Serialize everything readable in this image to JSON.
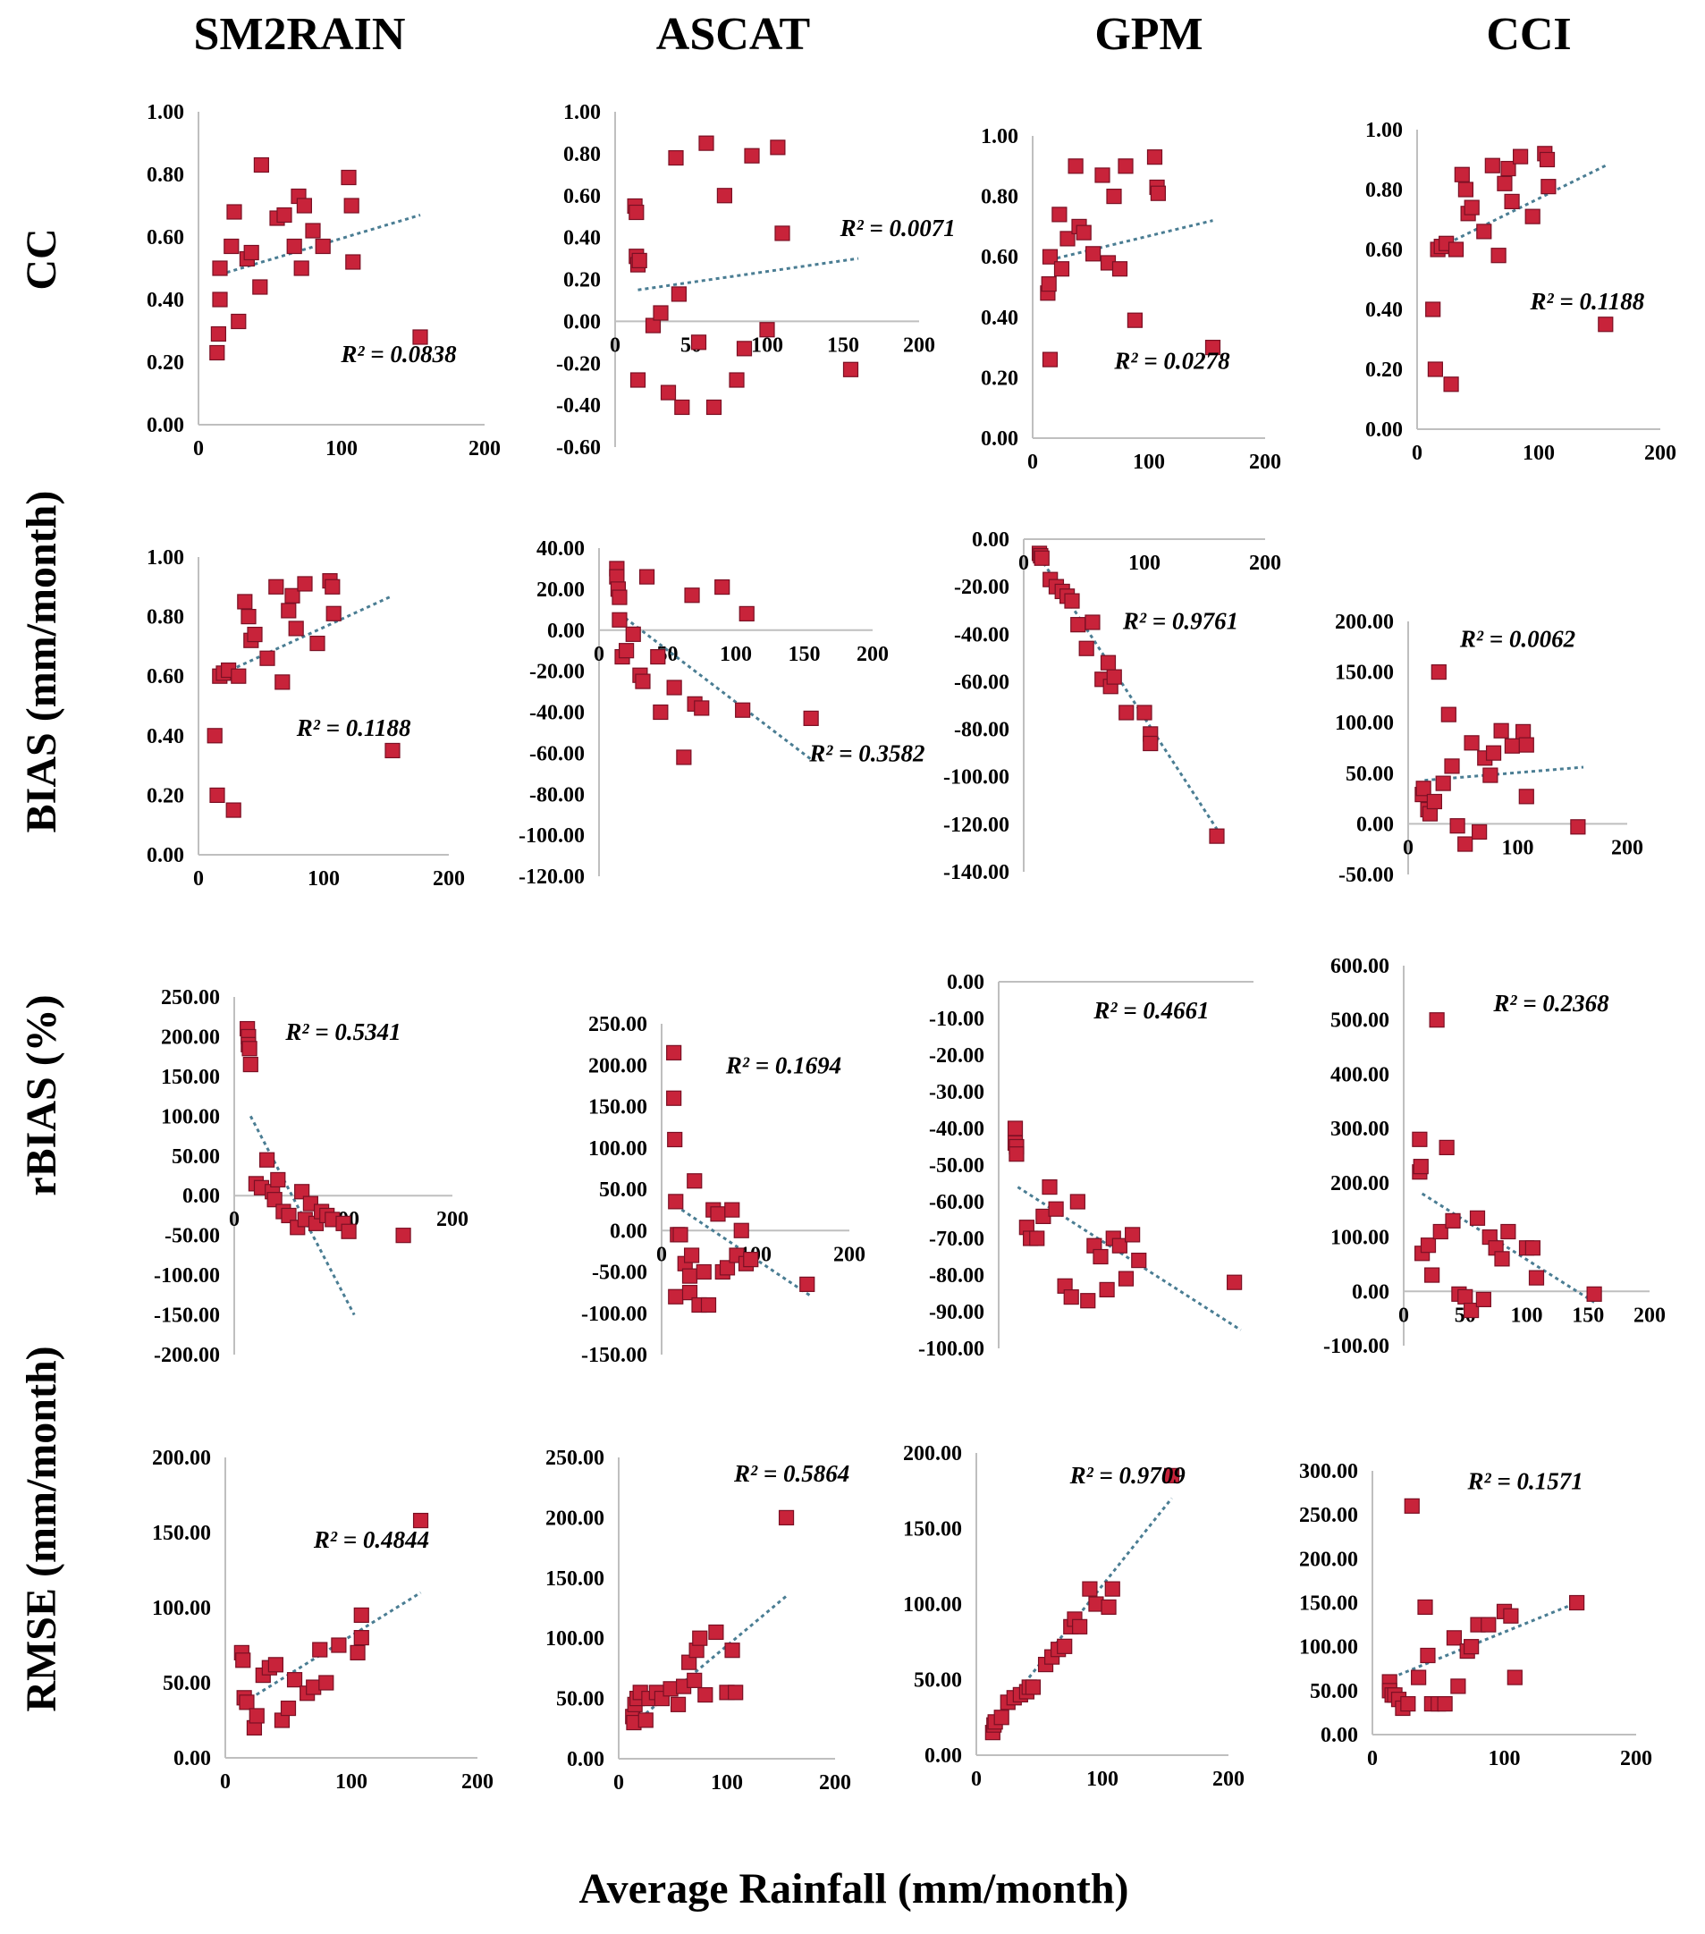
{
  "figure": {
    "column_titles": [
      "SM2RAIN",
      "ASCAT",
      "GPM",
      "CCI"
    ],
    "row_titles": [
      "CC",
      "BIAS (mm/month)",
      "rBIAS (%)",
      "RMSE (mm/month)"
    ],
    "x_axis_title": "Average Rainfall (mm/month)"
  },
  "colors": {
    "marker": "#c8233a",
    "marker_edge": "#7a1024",
    "trendline": "#4a7d93",
    "axis": "#bfbfbf"
  },
  "chart_data": [
    {
      "id": "cc-sm2rain",
      "type": "scatter",
      "metric": "CC",
      "product": "SM2RAIN",
      "xlim": [
        0,
        200
      ],
      "ylim": [
        0,
        1
      ],
      "xticks": [
        "0",
        "100",
        "200"
      ],
      "yticks": [
        "0.00",
        "0.20",
        "0.40",
        "0.60",
        "0.80",
        "1.00"
      ],
      "r2": "R² = 0.0838",
      "trend": [
        [
          15,
          0.48
        ],
        [
          155,
          0.67
        ]
      ],
      "x": [
        13,
        14,
        15,
        15,
        23,
        25,
        28,
        34,
        37,
        43,
        44,
        55,
        60,
        67,
        70,
        72,
        74,
        80,
        87,
        105,
        107,
        108,
        155
      ],
      "y": [
        0.23,
        0.29,
        0.4,
        0.5,
        0.57,
        0.68,
        0.33,
        0.53,
        0.55,
        0.44,
        0.83,
        0.66,
        0.67,
        0.57,
        0.73,
        0.5,
        0.7,
        0.62,
        0.57,
        0.79,
        0.7,
        0.52,
        0.28
      ]
    },
    {
      "id": "cc-ascat",
      "type": "scatter",
      "metric": "CC",
      "product": "ASCAT",
      "xlim": [
        0,
        200
      ],
      "ylim": [
        -0.6,
        1
      ],
      "xticks": [
        "0",
        "50",
        "100",
        "150",
        "200"
      ],
      "yticks": [
        "-0.60",
        "-0.40",
        "-0.20",
        "0.00",
        "0.20",
        "0.40",
        "0.60",
        "0.80",
        "1.00"
      ],
      "r2": "R² = 0.0071",
      "trend": [
        [
          15,
          0.15
        ],
        [
          160,
          0.3
        ]
      ],
      "x": [
        13,
        14,
        14,
        15,
        15,
        16,
        25,
        30,
        35,
        40,
        42,
        44,
        55,
        60,
        65,
        72,
        80,
        85,
        90,
        100,
        107,
        110,
        155
      ],
      "y": [
        0.55,
        0.52,
        0.31,
        0.27,
        -0.28,
        0.29,
        -0.02,
        0.04,
        -0.34,
        0.78,
        0.13,
        -0.41,
        -0.1,
        0.85,
        -0.41,
        0.6,
        -0.28,
        -0.13,
        0.79,
        -0.04,
        0.83,
        0.42,
        -0.23
      ]
    },
    {
      "id": "cc-gpm",
      "type": "scatter",
      "metric": "CC",
      "product": "GPM",
      "xlim": [
        0,
        200
      ],
      "ylim": [
        0,
        1
      ],
      "xticks": [
        "0",
        "100",
        "200"
      ],
      "yticks": [
        "0.00",
        "0.20",
        "0.40",
        "0.60",
        "0.80",
        "1.00"
      ],
      "r2": "R² = 0.0278",
      "trend": [
        [
          15,
          0.59
        ],
        [
          155,
          0.72
        ]
      ],
      "x": [
        13,
        14,
        15,
        15,
        23,
        25,
        30,
        37,
        40,
        44,
        52,
        60,
        65,
        70,
        75,
        80,
        88,
        105,
        107,
        108,
        155
      ],
      "y": [
        0.48,
        0.51,
        0.6,
        0.26,
        0.74,
        0.56,
        0.66,
        0.9,
        0.7,
        0.68,
        0.61,
        0.87,
        0.58,
        0.8,
        0.56,
        0.9,
        0.39,
        0.93,
        0.83,
        0.81,
        0.3
      ]
    },
    {
      "id": "cc-cci",
      "type": "scatter",
      "metric": "CC",
      "product": "CCI",
      "xlim": [
        0,
        200
      ],
      "ylim": [
        0,
        1
      ],
      "xticks": [
        "0",
        "100",
        "200"
      ],
      "yticks": [
        "0.00",
        "0.20",
        "0.40",
        "0.60",
        "0.80",
        "1.00"
      ],
      "r2": "R² = 0.1188",
      "trend": [
        [
          15,
          0.6
        ],
        [
          155,
          0.88
        ]
      ],
      "x": [
        13,
        15,
        17,
        20,
        24,
        28,
        32,
        37,
        40,
        42,
        45,
        55,
        62,
        67,
        72,
        75,
        78,
        85,
        95,
        105,
        107,
        108,
        155
      ],
      "y": [
        0.4,
        0.2,
        0.6,
        0.61,
        0.62,
        0.15,
        0.6,
        0.85,
        0.8,
        0.72,
        0.74,
        0.66,
        0.88,
        0.58,
        0.82,
        0.87,
        0.76,
        0.91,
        0.71,
        0.92,
        0.9,
        0.81,
        0.35
      ]
    },
    {
      "id": "bias-sm2rain",
      "type": "scatter",
      "metric": "BIAS",
      "product": "SM2RAIN",
      "xlim": [
        0,
        200
      ],
      "ylim": [
        0,
        1
      ],
      "xticks": [
        "0",
        "100",
        "200"
      ],
      "yticks": [
        "0.00",
        "0.20",
        "0.40",
        "0.60",
        "0.80",
        "1.00"
      ],
      "r2": "R² = 0.1188",
      "trend": [
        [
          15,
          0.6
        ],
        [
          155,
          0.87
        ]
      ],
      "x": [
        13,
        15,
        17,
        20,
        24,
        28,
        32,
        37,
        40,
        42,
        45,
        55,
        62,
        67,
        72,
        75,
        78,
        85,
        95,
        105,
        107,
        108,
        155
      ],
      "y": [
        0.4,
        0.2,
        0.6,
        0.61,
        0.62,
        0.15,
        0.6,
        0.85,
        0.8,
        0.72,
        0.74,
        0.66,
        0.9,
        0.58,
        0.82,
        0.87,
        0.76,
        0.91,
        0.71,
        0.92,
        0.9,
        0.81,
        0.35
      ]
    },
    {
      "id": "bias-ascat",
      "type": "scatter",
      "metric": "BIAS",
      "product": "ASCAT",
      "xlim": [
        0,
        200
      ],
      "ylim": [
        -120,
        40
      ],
      "xticks": [
        "0",
        "50",
        "100",
        "150",
        "200"
      ],
      "yticks": [
        "-120.00",
        "-100.00",
        "-80.00",
        "-60.00",
        "-40.00",
        "-20.00",
        "0.00",
        "20.00",
        "40.00"
      ],
      "r2": "R² = 0.3582",
      "trend": [
        [
          15,
          8
        ],
        [
          155,
          -63
        ]
      ],
      "x": [
        13,
        13,
        14,
        15,
        15,
        17,
        20,
        25,
        30,
        32,
        35,
        43,
        45,
        55,
        62,
        68,
        70,
        75,
        90,
        105,
        108,
        155
      ],
      "y": [
        30,
        26,
        20,
        16,
        5,
        -13,
        -10,
        -2,
        -22,
        -25,
        26,
        -13,
        -40,
        -28,
        -62,
        17,
        -36,
        -38,
        21,
        -39,
        8,
        -43
      ]
    },
    {
      "id": "bias-gpm",
      "type": "scatter",
      "metric": "BIAS",
      "product": "GPM",
      "xlim": [
        0,
        200
      ],
      "ylim": [
        -140,
        0
      ],
      "xticks": [
        "0",
        "100",
        "200"
      ],
      "yticks": [
        "-140.00",
        "-120.00",
        "-100.00",
        "-80.00",
        "-60.00",
        "-40.00",
        "-20.00",
        "0.00"
      ],
      "r2": "R² = 0.9761",
      "trend": [
        [
          10,
          -5
        ],
        [
          160,
          -122
        ]
      ],
      "x": [
        13,
        14,
        15,
        22,
        27,
        32,
        36,
        40,
        45,
        52,
        57,
        65,
        70,
        72,
        75,
        85,
        100,
        105,
        105,
        160
      ],
      "y": [
        -6,
        -7,
        -8,
        -17,
        -20,
        -22,
        -24,
        -26,
        -36,
        -46,
        -35,
        -59,
        -52,
        -62,
        -58,
        -73,
        -73,
        -82,
        -86,
        -125
      ]
    },
    {
      "id": "bias-cci",
      "type": "scatter",
      "metric": "BIAS",
      "product": "CCI",
      "xlim": [
        0,
        200
      ],
      "ylim": [
        -50,
        200
      ],
      "xticks": [
        "0",
        "100",
        "200"
      ],
      "yticks": [
        "-50.00",
        "0.00",
        "50.00",
        "100.00",
        "150.00",
        "200.00"
      ],
      "r2": "R² = 0.0062",
      "trend": [
        [
          15,
          43
        ],
        [
          160,
          56
        ]
      ],
      "x": [
        13,
        14,
        18,
        20,
        24,
        28,
        32,
        37,
        40,
        45,
        52,
        58,
        65,
        70,
        75,
        78,
        85,
        95,
        105,
        108,
        108,
        155
      ],
      "y": [
        29,
        35,
        14,
        10,
        22,
        150,
        40,
        108,
        57,
        -2,
        -20,
        80,
        -8,
        65,
        48,
        70,
        92,
        77,
        91,
        27,
        78,
        -3
      ]
    },
    {
      "id": "rbias-sm2rain",
      "type": "scatter",
      "metric": "rBIAS",
      "product": "SM2RAIN",
      "xlim": [
        0,
        200
      ],
      "ylim": [
        -200,
        250
      ],
      "xticks": [
        "0",
        "100",
        "200"
      ],
      "yticks": [
        "-200.00",
        "-150.00",
        "-100.00",
        "-50.00",
        "0.00",
        "50.00",
        "100.00",
        "150.00",
        "200.00",
        "250.00"
      ],
      "r2": "R² = 0.5341",
      "trend": [
        [
          15,
          100
        ],
        [
          110,
          -150
        ]
      ],
      "x": [
        12,
        13,
        13,
        14,
        15,
        20,
        25,
        30,
        35,
        37,
        40,
        45,
        50,
        58,
        62,
        65,
        70,
        75,
        80,
        85,
        90,
        100,
        105,
        155
      ],
      "y": [
        210,
        200,
        190,
        185,
        165,
        15,
        10,
        45,
        5,
        -5,
        20,
        -20,
        -25,
        -40,
        5,
        -30,
        -10,
        -35,
        -20,
        -25,
        -30,
        -35,
        -45,
        -50
      ]
    },
    {
      "id": "rbias-ascat",
      "type": "scatter",
      "metric": "rBIAS",
      "product": "ASCAT",
      "xlim": [
        0,
        200
      ],
      "ylim": [
        -150,
        250
      ],
      "xticks": [
        "0",
        "100",
        "200"
      ],
      "yticks": [
        "-150.00",
        "-100.00",
        "-50.00",
        "0.00",
        "50.00",
        "100.00",
        "150.00",
        "200.00",
        "250.00"
      ],
      "r2": "R² = 0.1694",
      "trend": [
        [
          15,
          30
        ],
        [
          160,
          -80
        ]
      ],
      "x": [
        13,
        13,
        14,
        15,
        15,
        17,
        20,
        25,
        30,
        30,
        32,
        35,
        40,
        45,
        50,
        55,
        60,
        65,
        70,
        75,
        80,
        85,
        90,
        95,
        155
      ],
      "y": [
        215,
        160,
        110,
        35,
        -80,
        -5,
        -5,
        -40,
        -55,
        -75,
        -30,
        60,
        -90,
        -50,
        -90,
        25,
        20,
        -50,
        -45,
        25,
        -30,
        0,
        -40,
        -35,
        -65
      ]
    },
    {
      "id": "rbias-gpm",
      "type": "scatter",
      "metric": "rBIAS",
      "product": "GPM",
      "xlim": [
        0,
        200
      ],
      "ylim": [
        -100,
        0
      ],
      "xticks": [],
      "yticks": [
        "-100.00",
        "-90.00",
        "-80.00",
        "-70.00",
        "-60.00",
        "-50.00",
        "-40.00",
        "-30.00",
        "-20.00",
        "-10.00",
        "0.00"
      ],
      "r2": "R² = 0.4661",
      "trend": [
        [
          15,
          -56
        ],
        [
          190,
          -95
        ]
      ],
      "x": [
        13,
        13,
        14,
        14,
        22,
        25,
        30,
        35,
        40,
        45,
        52,
        57,
        62,
        70,
        75,
        80,
        85,
        90,
        95,
        100,
        105,
        110,
        185
      ],
      "y": [
        -40,
        -44,
        -45,
        -47,
        -67,
        -70,
        -70,
        -64,
        -56,
        -62,
        -83,
        -86,
        -60,
        -87,
        -72,
        -75,
        -84,
        -70,
        -72,
        -81,
        -69,
        -76,
        -82
      ]
    },
    {
      "id": "rbias-cci",
      "type": "scatter",
      "metric": "rBIAS",
      "product": "CCI",
      "xlim": [
        0,
        200
      ],
      "ylim": [
        -100,
        600
      ],
      "xticks": [
        "0",
        "50",
        "100",
        "150",
        "200"
      ],
      "yticks": [
        "-100.00",
        "0.00",
        "100.00",
        "200.00",
        "300.00",
        "400.00",
        "500.00",
        "600.00"
      ],
      "r2": "R² = 0.2368",
      "trend": [
        [
          15,
          180
        ],
        [
          155,
          -20
        ]
      ],
      "x": [
        13,
        13,
        14,
        15,
        20,
        23,
        27,
        30,
        35,
        40,
        45,
        50,
        55,
        60,
        65,
        70,
        75,
        80,
        85,
        100,
        105,
        108,
        155
      ],
      "y": [
        280,
        220,
        230,
        70,
        85,
        30,
        500,
        110,
        265,
        130,
        -5,
        -10,
        -35,
        135,
        -15,
        100,
        80,
        60,
        110,
        80,
        80,
        25,
        -5
      ]
    },
    {
      "id": "rmse-sm2rain",
      "type": "scatter",
      "metric": "RMSE",
      "product": "SM2RAIN",
      "xlim": [
        0,
        200
      ],
      "ylim": [
        0,
        200
      ],
      "xticks": [
        "0",
        "100",
        "200"
      ],
      "yticks": [
        "0.00",
        "50.00",
        "100.00",
        "150.00",
        "200.00"
      ],
      "r2": "R² = 0.4844",
      "trend": [
        [
          15,
          37
        ],
        [
          155,
          110
        ]
      ],
      "x": [
        13,
        14,
        15,
        17,
        23,
        25,
        30,
        35,
        40,
        45,
        50,
        55,
        65,
        70,
        75,
        80,
        90,
        105,
        108,
        108,
        155
      ],
      "y": [
        70,
        65,
        40,
        37,
        20,
        28,
        55,
        60,
        62,
        25,
        33,
        52,
        43,
        47,
        72,
        50,
        75,
        70,
        95,
        80,
        158
      ]
    },
    {
      "id": "rmse-ascat",
      "type": "scatter",
      "metric": "RMSE",
      "product": "ASCAT",
      "xlim": [
        0,
        200
      ],
      "ylim": [
        0,
        250
      ],
      "xticks": [
        "0",
        "100",
        "200"
      ],
      "yticks": [
        "0.00",
        "50.00",
        "100.00",
        "150.00",
        "200.00",
        "250.00"
      ],
      "r2": "R² = 0.5864",
      "trend": [
        [
          15,
          30
        ],
        [
          155,
          135
        ]
      ],
      "x": [
        13,
        14,
        15,
        17,
        20,
        25,
        28,
        35,
        40,
        48,
        55,
        60,
        65,
        70,
        72,
        75,
        80,
        90,
        100,
        105,
        108,
        155
      ],
      "y": [
        35,
        30,
        45,
        50,
        55,
        32,
        50,
        55,
        50,
        58,
        45,
        60,
        80,
        65,
        90,
        100,
        53,
        105,
        55,
        90,
        55,
        200
      ]
    },
    {
      "id": "rmse-gpm",
      "type": "scatter",
      "metric": "RMSE",
      "product": "GPM",
      "xlim": [
        0,
        200
      ],
      "ylim": [
        0,
        200
      ],
      "xticks": [
        "0",
        "100",
        "200"
      ],
      "yticks": [
        "0.00",
        "50.00",
        "100.00",
        "150.00",
        "200.00"
      ],
      "r2": "R² = 0.9709",
      "trend": [
        [
          10,
          18
        ],
        [
          155,
          170
        ]
      ],
      "x": [
        13,
        14,
        15,
        20,
        25,
        30,
        35,
        40,
        42,
        45,
        55,
        60,
        65,
        70,
        75,
        78,
        82,
        90,
        95,
        105,
        108,
        155
      ],
      "y": [
        15,
        20,
        22,
        25,
        35,
        38,
        40,
        42,
        45,
        45,
        60,
        65,
        70,
        72,
        85,
        90,
        85,
        110,
        100,
        98,
        110,
        185
      ]
    },
    {
      "id": "rmse-cci",
      "type": "scatter",
      "metric": "RMSE",
      "product": "CCI",
      "xlim": [
        0,
        200
      ],
      "ylim": [
        0,
        300
      ],
      "xticks": [
        "0",
        "100",
        "200"
      ],
      "yticks": [
        "0.00",
        "50.00",
        "100.00",
        "150.00",
        "200.00",
        "250.00",
        "300.00"
      ],
      "r2": "R² = 0.1571",
      "trend": [
        [
          15,
          65
        ],
        [
          155,
          150
        ]
      ],
      "x": [
        13,
        13,
        15,
        17,
        20,
        23,
        27,
        30,
        35,
        40,
        42,
        45,
        50,
        55,
        62,
        65,
        72,
        75,
        80,
        88,
        100,
        105,
        108,
        155
      ],
      "y": [
        60,
        50,
        45,
        45,
        40,
        30,
        35,
        260,
        65,
        145,
        90,
        35,
        35,
        35,
        110,
        55,
        95,
        100,
        125,
        125,
        140,
        135,
        65,
        150
      ]
    }
  ]
}
